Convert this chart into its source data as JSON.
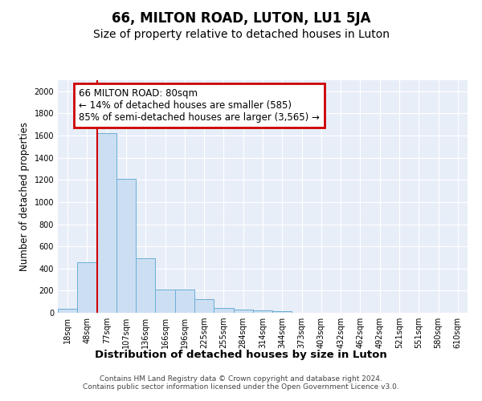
{
  "title1": "66, MILTON ROAD, LUTON, LU1 5JA",
  "title2": "Size of property relative to detached houses in Luton",
  "xlabel": "Distribution of detached houses by size in Luton",
  "ylabel": "Number of detached properties",
  "categories": [
    "18sqm",
    "48sqm",
    "77sqm",
    "107sqm",
    "136sqm",
    "166sqm",
    "196sqm",
    "225sqm",
    "255sqm",
    "284sqm",
    "314sqm",
    "344sqm",
    "373sqm",
    "403sqm",
    "432sqm",
    "462sqm",
    "492sqm",
    "521sqm",
    "551sqm",
    "580sqm",
    "610sqm"
  ],
  "values": [
    35,
    455,
    1620,
    1210,
    490,
    210,
    210,
    120,
    45,
    30,
    20,
    15,
    0,
    0,
    0,
    0,
    0,
    0,
    0,
    0,
    0
  ],
  "bar_color": "#ccdff2",
  "bar_edge_color": "#6aaed6",
  "bg_color": "#e8eef8",
  "grid_color": "#ffffff",
  "red_line_index": 2,
  "annotation_text": "66 MILTON ROAD: 80sqm\n← 14% of detached houses are smaller (585)\n85% of semi-detached houses are larger (3,565) →",
  "annotation_box_color": "#ffffff",
  "annotation_border_color": "#cc0000",
  "ylim": [
    0,
    2100
  ],
  "yticks": [
    0,
    200,
    400,
    600,
    800,
    1000,
    1200,
    1400,
    1600,
    1800,
    2000
  ],
  "footnote": "Contains HM Land Registry data © Crown copyright and database right 2024.\nContains public sector information licensed under the Open Government Licence v3.0.",
  "title1_fontsize": 12,
  "title2_fontsize": 10,
  "ylabel_fontsize": 8.5,
  "xlabel_fontsize": 9.5,
  "tick_fontsize": 7,
  "annotation_fontsize": 8.5,
  "footnote_fontsize": 6.5
}
